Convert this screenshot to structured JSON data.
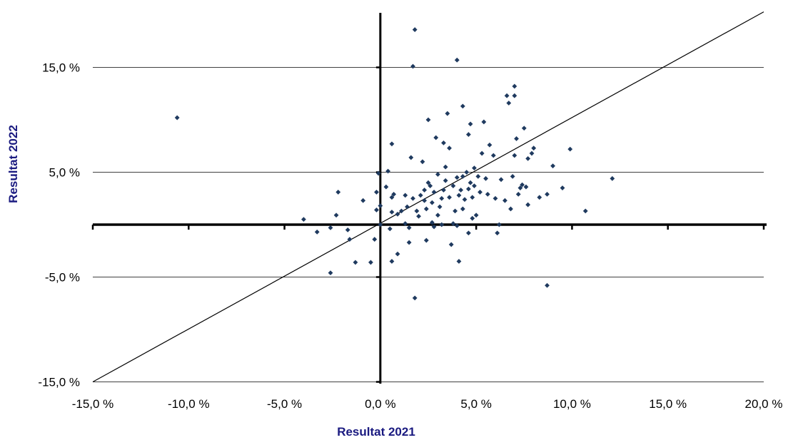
{
  "chart_data": {
    "type": "scatter",
    "title": "",
    "xlabel": "Resultat 2021",
    "ylabel": "Resultat 2022",
    "xlim": [
      -15,
      20
    ],
    "ylim": [
      -15,
      20
    ],
    "x_ticks": [
      -15,
      -10,
      -5,
      0,
      5,
      10,
      15,
      20
    ],
    "x_tick_labels": [
      "-15,0 %",
      "-10,0 %",
      "-5,0 %",
      "0,0 %",
      "5,0 %",
      "10,0 %",
      "15,0 %",
      "20,0 %"
    ],
    "y_ticks": [
      -15,
      -5,
      5,
      15
    ],
    "y_tick_labels": [
      "-15,0 %",
      "-5,0 %",
      "5,0 %",
      "15,0 %"
    ],
    "grid": "horizontal",
    "reference_line": "y = x",
    "marker_color": "#1f3a5f",
    "points": [
      [
        -10.6,
        10.2
      ],
      [
        -4.0,
        0.5
      ],
      [
        -3.3,
        -0.7
      ],
      [
        -2.6,
        -4.6
      ],
      [
        -2.6,
        -0.3
      ],
      [
        -2.3,
        0.9
      ],
      [
        -2.2,
        3.1
      ],
      [
        -1.7,
        -0.5
      ],
      [
        -1.6,
        -1.4
      ],
      [
        -1.3,
        -3.6
      ],
      [
        -0.9,
        2.3
      ],
      [
        -0.5,
        -3.6
      ],
      [
        -0.3,
        -1.4
      ],
      [
        -0.2,
        3.1
      ],
      [
        -0.2,
        1.4
      ],
      [
        -0.1,
        4.9
      ],
      [
        0.0,
        1.8
      ],
      [
        0.0,
        0.0
      ],
      [
        0.3,
        3.6
      ],
      [
        0.4,
        5.1
      ],
      [
        0.5,
        -0.4
      ],
      [
        0.6,
        2.6
      ],
      [
        0.6,
        -3.5
      ],
      [
        0.6,
        1.2
      ],
      [
        0.6,
        7.7
      ],
      [
        0.7,
        2.9
      ],
      [
        0.9,
        -2.8
      ],
      [
        0.9,
        1.0
      ],
      [
        1.1,
        1.3
      ],
      [
        1.3,
        2.8
      ],
      [
        1.3,
        0.1
      ],
      [
        1.4,
        1.7
      ],
      [
        1.5,
        -0.3
      ],
      [
        1.5,
        -1.7
      ],
      [
        1.6,
        6.4
      ],
      [
        1.7,
        2.5
      ],
      [
        1.7,
        15.1
      ],
      [
        1.8,
        18.6
      ],
      [
        1.8,
        -7.0
      ],
      [
        1.9,
        1.3
      ],
      [
        2.0,
        0.8
      ],
      [
        2.1,
        2.8
      ],
      [
        2.2,
        6.0
      ],
      [
        2.3,
        3.3
      ],
      [
        2.3,
        2.3
      ],
      [
        2.4,
        1.5
      ],
      [
        2.4,
        -1.5
      ],
      [
        2.5,
        10.0
      ],
      [
        2.5,
        4.0
      ],
      [
        2.6,
        3.7
      ],
      [
        2.7,
        0.2
      ],
      [
        2.7,
        2.1
      ],
      [
        2.8,
        -0.2
      ],
      [
        2.8,
        3.1
      ],
      [
        2.9,
        8.3
      ],
      [
        3.0,
        0.9
      ],
      [
        3.0,
        4.8
      ],
      [
        3.1,
        1.7
      ],
      [
        3.2,
        2.5
      ],
      [
        3.2,
        0.0
      ],
      [
        3.3,
        3.3
      ],
      [
        3.3,
        7.8
      ],
      [
        3.4,
        5.5
      ],
      [
        3.4,
        4.2
      ],
      [
        3.5,
        10.6
      ],
      [
        3.6,
        7.3
      ],
      [
        3.6,
        2.6
      ],
      [
        3.7,
        -1.9
      ],
      [
        3.8,
        0.1
      ],
      [
        3.8,
        3.7
      ],
      [
        3.9,
        1.3
      ],
      [
        4.0,
        15.7
      ],
      [
        4.0,
        4.5
      ],
      [
        4.0,
        -0.1
      ],
      [
        4.1,
        2.8
      ],
      [
        4.1,
        -3.5
      ],
      [
        4.2,
        3.3
      ],
      [
        4.3,
        11.3
      ],
      [
        4.3,
        1.5
      ],
      [
        4.3,
        4.6
      ],
      [
        4.4,
        2.4
      ],
      [
        4.5,
        5.0
      ],
      [
        4.6,
        8.6
      ],
      [
        4.6,
        3.4
      ],
      [
        4.6,
        -0.8
      ],
      [
        4.7,
        9.6
      ],
      [
        4.7,
        4.0
      ],
      [
        4.8,
        2.6
      ],
      [
        4.8,
        0.6
      ],
      [
        4.9,
        3.7
      ],
      [
        4.9,
        5.4
      ],
      [
        5.0,
        0.9
      ],
      [
        5.1,
        4.6
      ],
      [
        5.2,
        3.1
      ],
      [
        5.3,
        6.8
      ],
      [
        5.4,
        9.8
      ],
      [
        5.5,
        4.4
      ],
      [
        5.6,
        2.9
      ],
      [
        5.7,
        7.6
      ],
      [
        5.9,
        6.6
      ],
      [
        6.0,
        2.5
      ],
      [
        6.1,
        -0.8
      ],
      [
        6.2,
        0.0
      ],
      [
        6.3,
        4.3
      ],
      [
        6.5,
        2.3
      ],
      [
        6.6,
        12.3
      ],
      [
        6.7,
        11.6
      ],
      [
        6.8,
        1.5
      ],
      [
        6.9,
        4.6
      ],
      [
        7.0,
        6.6
      ],
      [
        7.0,
        12.3
      ],
      [
        7.0,
        13.2
      ],
      [
        7.1,
        8.2
      ],
      [
        7.2,
        2.9
      ],
      [
        7.3,
        3.5
      ],
      [
        7.4,
        3.8
      ],
      [
        7.5,
        9.2
      ],
      [
        7.6,
        3.6
      ],
      [
        7.7,
        6.3
      ],
      [
        7.7,
        1.9
      ],
      [
        7.9,
        6.8
      ],
      [
        8.0,
        7.3
      ],
      [
        8.3,
        2.6
      ],
      [
        8.7,
        -5.8
      ],
      [
        8.7,
        2.9
      ],
      [
        9.0,
        5.6
      ],
      [
        9.5,
        3.5
      ],
      [
        9.9,
        7.2
      ],
      [
        10.7,
        1.3
      ],
      [
        12.1,
        4.4
      ]
    ]
  }
}
